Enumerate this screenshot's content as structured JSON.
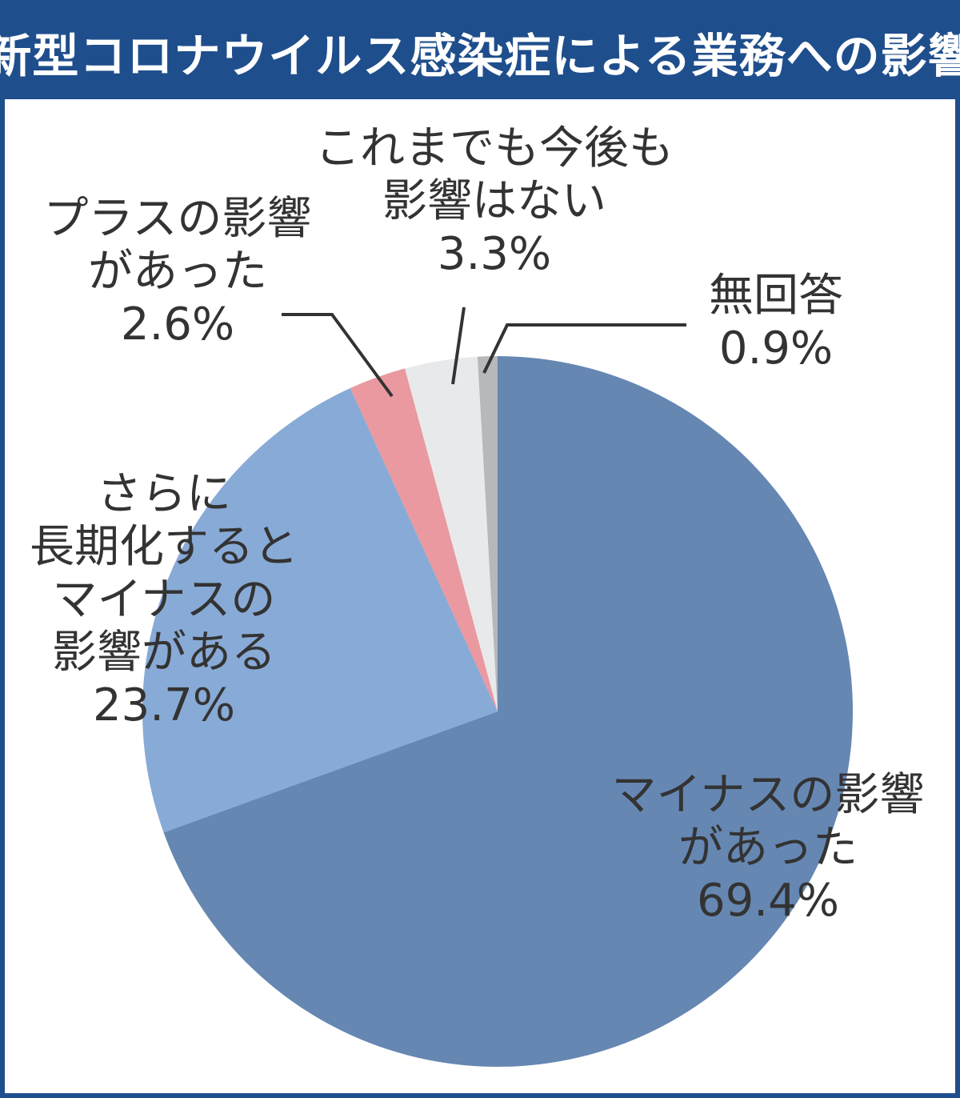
{
  "title": "新型コロナウイルス感染症による業務への影響",
  "colors": {
    "frame": "#1f4e8c",
    "label_text": "#333333",
    "leader_line": "#333333"
  },
  "chart_data": {
    "type": "pie",
    "start": "12 o'clock, clockwise",
    "slices": [
      {
        "label_lines": [
          "マイナスの影響",
          "があった"
        ],
        "value": 69.4,
        "value_label": "69.4%",
        "color": "#6587b2"
      },
      {
        "label_lines": [
          "さらに",
          "長期化すると",
          "マイナスの",
          "影響がある"
        ],
        "value": 23.7,
        "value_label": "23.7%",
        "color": "#88aad6"
      },
      {
        "label_lines": [
          "プラスの影響",
          "があった"
        ],
        "value": 2.6,
        "value_label": "2.6%",
        "color": "#e9999f"
      },
      {
        "label_lines": [
          "これまでも今後も",
          "影響はない"
        ],
        "value": 3.3,
        "value_label": "3.3%",
        "color": "#e8e9ea"
      },
      {
        "label_lines": [
          "無回答"
        ],
        "value": 0.9,
        "value_label": "0.9%",
        "color": "#b6b8ba"
      }
    ]
  }
}
